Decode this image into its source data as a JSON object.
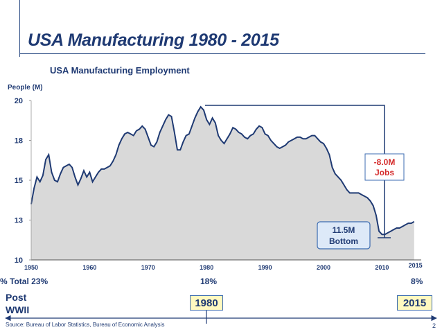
{
  "header": {
    "title": "USA Manufacturing 1980 - 2015"
  },
  "chart_data": {
    "type": "area",
    "title": "USA Manufacturing Employment",
    "ylabel": "People (M)",
    "xlabel": "",
    "xlim": [
      1950,
      2016
    ],
    "ylim": [
      10,
      20
    ],
    "y_tick_labels": [
      "20",
      "18",
      "15",
      "13",
      "10"
    ],
    "x_tick_labels": [
      "1950",
      "1960",
      "1970",
      "1980",
      "1990",
      "2000",
      "2010",
      "2015"
    ],
    "grid": false,
    "series": [
      {
        "x": [
          1950.0,
          1950.5,
          1951.0,
          1951.5,
          1952.0,
          1952.5,
          1953.0,
          1953.5,
          1954.0,
          1954.5,
          1955.0,
          1955.5,
          1956.0,
          1956.5,
          1957.0,
          1957.5,
          1958.0,
          1958.5,
          1959.0,
          1959.5,
          1960.0,
          1960.5,
          1961.0,
          1961.5,
          1962.0,
          1962.5,
          1963.0,
          1963.5,
          1964.0,
          1964.5,
          1965.0,
          1965.5,
          1966.0,
          1966.5,
          1967.0,
          1967.5,
          1968.0,
          1968.5,
          1969.0,
          1969.5,
          1970.0,
          1970.5,
          1971.0,
          1971.5,
          1972.0,
          1972.5,
          1973.0,
          1973.5,
          1974.0,
          1974.5,
          1975.0,
          1975.5,
          1976.0,
          1976.5,
          1977.0,
          1977.5,
          1978.0,
          1978.5,
          1979.0,
          1979.5,
          1980.0,
          1980.5,
          1981.0,
          1981.5,
          1982.0,
          1982.5,
          1983.0,
          1983.5,
          1984.0,
          1984.5,
          1985.0,
          1985.5,
          1986.0,
          1986.5,
          1987.0,
          1987.5,
          1988.0,
          1988.5,
          1989.0,
          1989.5,
          1990.0,
          1990.5,
          1991.0,
          1991.5,
          1992.0,
          1992.5,
          1993.0,
          1993.5,
          1994.0,
          1994.5,
          1995.0,
          1995.5,
          1996.0,
          1996.5,
          1997.0,
          1997.5,
          1998.0,
          1998.5,
          1999.0,
          1999.5,
          2000.0,
          2000.5,
          2001.0,
          2001.5,
          2002.0,
          2002.5,
          2003.0,
          2003.5,
          2004.0,
          2004.5,
          2005.0,
          2005.5,
          2006.0,
          2006.5,
          2007.0,
          2007.5,
          2008.0,
          2008.5,
          2009.0,
          2009.5,
          2010.0,
          2010.5,
          2011.0,
          2011.5,
          2012.0,
          2012.5,
          2013.0,
          2013.5,
          2014.0,
          2014.5,
          2015.0,
          2015.5
        ],
        "y": [
          13.5,
          14.5,
          15.2,
          14.9,
          15.3,
          16.3,
          16.6,
          15.5,
          15.0,
          14.9,
          15.4,
          15.8,
          15.9,
          16.0,
          15.8,
          15.2,
          14.7,
          15.1,
          15.6,
          15.2,
          15.5,
          14.9,
          15.2,
          15.5,
          15.7,
          15.7,
          15.8,
          15.9,
          16.2,
          16.6,
          17.2,
          17.6,
          17.9,
          18.0,
          17.9,
          17.8,
          18.1,
          18.2,
          18.4,
          18.2,
          17.7,
          17.2,
          17.1,
          17.4,
          18.0,
          18.4,
          18.8,
          19.1,
          19.0,
          18.0,
          16.9,
          16.9,
          17.4,
          17.8,
          17.9,
          18.4,
          18.9,
          19.3,
          19.6,
          19.4,
          18.8,
          18.5,
          18.9,
          18.6,
          17.8,
          17.5,
          17.3,
          17.6,
          17.9,
          18.3,
          18.2,
          18.0,
          17.9,
          17.7,
          17.6,
          17.8,
          17.9,
          18.2,
          18.4,
          18.3,
          17.9,
          17.8,
          17.5,
          17.3,
          17.1,
          17.0,
          17.1,
          17.2,
          17.4,
          17.5,
          17.6,
          17.7,
          17.7,
          17.6,
          17.6,
          17.7,
          17.8,
          17.8,
          17.6,
          17.4,
          17.3,
          17.0,
          16.6,
          15.8,
          15.4,
          15.2,
          15.0,
          14.7,
          14.4,
          14.2,
          14.2,
          14.2,
          14.2,
          14.1,
          14.0,
          13.9,
          13.7,
          13.4,
          12.8,
          11.8,
          11.6,
          11.6,
          11.7,
          11.8,
          11.9,
          12.0,
          12.0,
          12.1,
          12.2,
          12.3,
          12.3,
          12.4
        ]
      }
    ],
    "annotations": {
      "drop_label": [
        "-8.0M",
        "Jobs"
      ],
      "bottom_label": [
        "11.5M",
        "Bottom"
      ]
    },
    "share_labels": {
      "prefix": "% Total",
      "values": [
        "23%",
        "18%",
        "8%"
      ]
    }
  },
  "timeline": {
    "post_wwii": [
      "Post",
      "WWII"
    ],
    "start": "1980",
    "end": "2015"
  },
  "footer": {
    "source": "Source: Bureau of Labor Statistics, Bureau of Economic Analysis",
    "page_number": "2"
  }
}
